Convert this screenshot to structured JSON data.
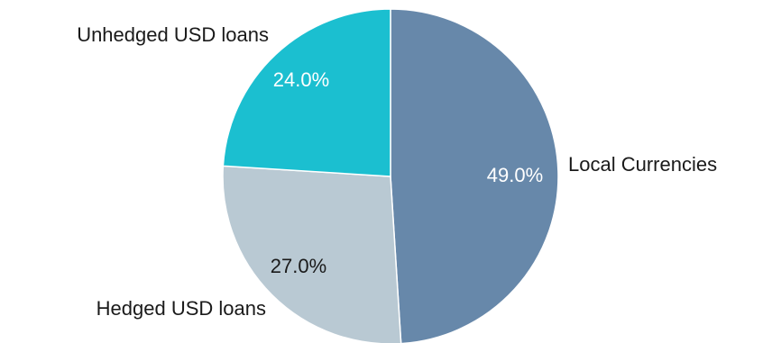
{
  "chart_data": {
    "type": "pie",
    "categories": [
      "Local Currencies",
      "Hedged USD loans",
      "Unhedged USD loans"
    ],
    "values": [
      49.0,
      27.0,
      24.0
    ],
    "value_labels": [
      "49.0%",
      "27.0%",
      "24.0%"
    ],
    "colors": [
      "#6788aa",
      "#b9c9d3",
      "#1bbfd0"
    ],
    "value_label_colors": [
      "#ffffff",
      "#1a1a1a",
      "#ffffff"
    ],
    "start_angle": "12 o'clock",
    "direction": "clockwise",
    "title": "",
    "legend": "none"
  }
}
